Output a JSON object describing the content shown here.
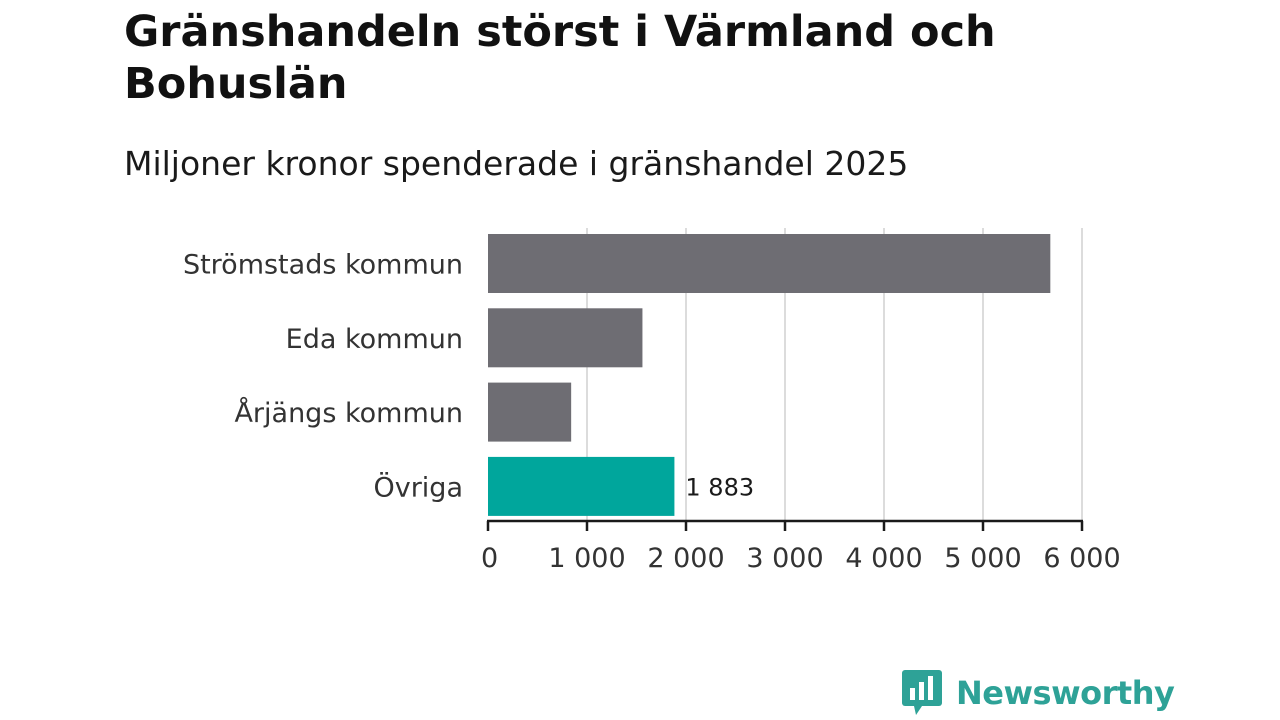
{
  "header": {
    "title": "Gränshandeln störst i Värmland och Bohuslän",
    "subtitle": "Miljoner kronor spenderade i gränshandel 2025"
  },
  "colors": {
    "bar_default": "#6e6d73",
    "bar_highlight": "#00a69c",
    "grid": "#dcdcdc",
    "axis": "#1a1a1a",
    "label_text": "#333333",
    "logo": "#2ea297"
  },
  "chart_data": {
    "type": "bar",
    "orientation": "horizontal",
    "title": "Gränshandeln störst i Värmland och Bohuslän",
    "subtitle": "Miljoner kronor spenderade i gränshandel 2025",
    "xlabel": "",
    "ylabel": "",
    "categories": [
      "Strömstads kommun",
      "Eda kommun",
      "Årjängs kommun",
      "Övriga"
    ],
    "values": [
      5680,
      1560,
      840,
      1883
    ],
    "highlighted_category": "Övriga",
    "data_labels": [
      {
        "category": "Övriga",
        "text": "1 883"
      }
    ],
    "xlim": [
      0,
      6000
    ],
    "xticks": [
      0,
      1000,
      2000,
      3000,
      4000,
      5000,
      6000
    ],
    "xtick_labels": [
      "0",
      "1 000",
      "2 000",
      "3 000",
      "4 000",
      "5 000",
      "6 000"
    ],
    "grid": true
  },
  "logo": {
    "text": "Newsworthy",
    "icon": "bar-chart-speech-bubble-icon"
  }
}
